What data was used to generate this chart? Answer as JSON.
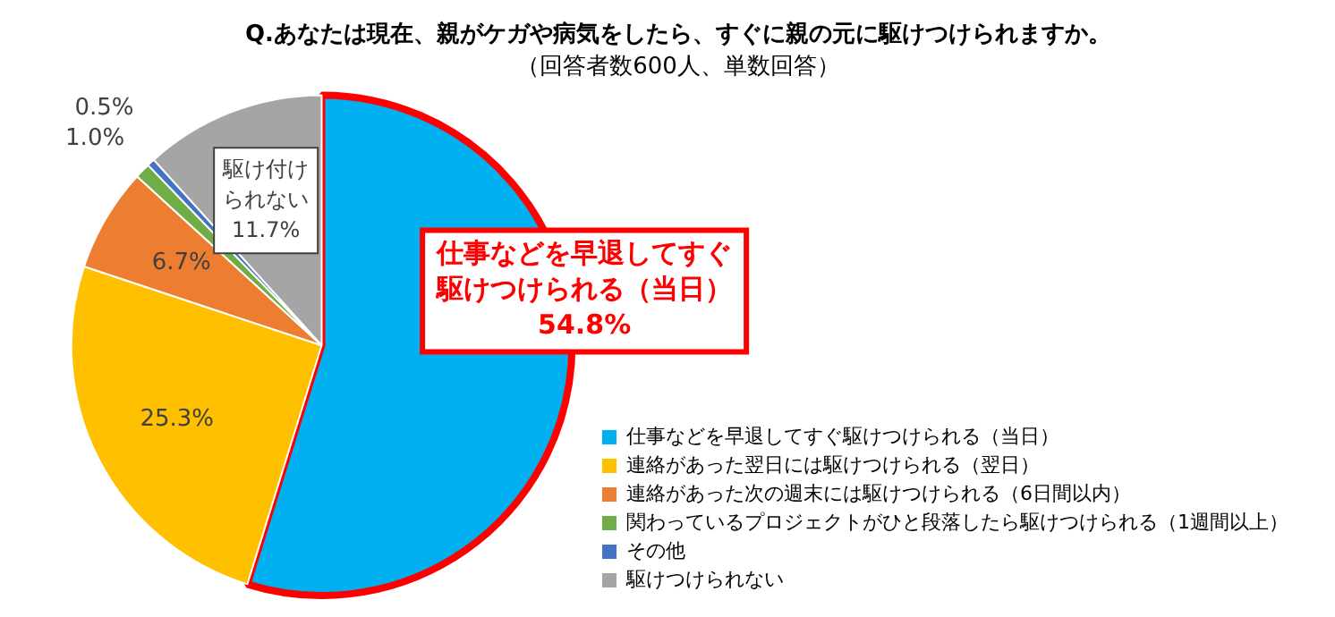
{
  "chart_data": {
    "type": "pie",
    "title": "Q.あなたは現在、親がケガや病気をしたら、すぐに親の元に駆けつけられますか。",
    "subtitle": "（回答者数600人、単数回答）",
    "categories": [
      "仕事などを早退してすぐ駆けつけられる（当日）",
      "連絡があった翌日には駆けつけられる（翌日）",
      "連絡があった次の週末には駆けつけられる（6日間以内）",
      "関わっているプロジェクトがひと段落したら駆けつけられる（1週間以上）",
      "その他",
      "駆けつけられない"
    ],
    "values": [
      54.8,
      25.3,
      6.7,
      1.0,
      0.5,
      11.7
    ],
    "colors": [
      "#00b0f0",
      "#ffc000",
      "#ed7d31",
      "#70ad47",
      "#4472c4",
      "#a5a5a5"
    ],
    "value_labels": [
      "54.8%",
      "25.3%",
      "6.7%",
      "1.0%",
      "0.5%",
      "11.7%"
    ],
    "annotations": [
      "仕事などを早退してすぐ駆けつけられる（当日）",
      "駆け付けられない"
    ],
    "legend": "bottom right"
  }
}
